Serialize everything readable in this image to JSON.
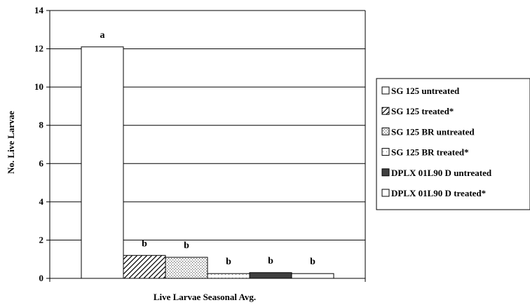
{
  "chart_data": {
    "type": "bar",
    "title": "",
    "xlabel": "Live Larvae Seasonal Avg.",
    "ylabel": "No. Live Larvae",
    "ylim": [
      0,
      14
    ],
    "yticks": [
      0,
      2,
      4,
      6,
      8,
      10,
      12,
      14
    ],
    "grid": true,
    "legend_position": "right",
    "categories": [
      "Live Larvae Seasonal Avg."
    ],
    "series": [
      {
        "name": "SG 125 untreated",
        "values": [
          12.1
        ],
        "label": "a",
        "fill": "white"
      },
      {
        "name": "SG 125 treated*",
        "values": [
          1.2
        ],
        "label": "b",
        "fill": "hatch"
      },
      {
        "name": "SG 125 BR untreated",
        "values": [
          1.1
        ],
        "label": "b",
        "fill": "dots-dense"
      },
      {
        "name": "SG 125 BR treated*",
        "values": [
          0.25
        ],
        "label": "b",
        "fill": "dots-sparse"
      },
      {
        "name": "DPLX 01L90 D untreated",
        "values": [
          0.3
        ],
        "label": "b",
        "fill": "dark"
      },
      {
        "name": "DPLX 01L90 D treated*",
        "values": [
          0.25
        ],
        "label": "b",
        "fill": "white"
      }
    ]
  }
}
